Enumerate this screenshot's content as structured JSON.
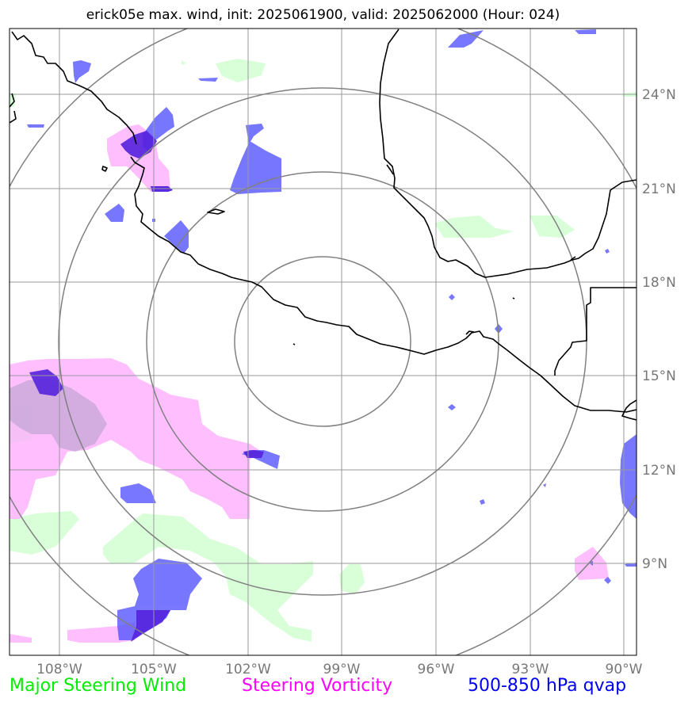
{
  "title": "erick05e max. wind, init: 2025061900, valid: 2025062000 (Hour: 024)",
  "lon_labels": [
    "108°W",
    "105°W",
    "102°W",
    "99°W",
    "96°W",
    "93°W",
    "90°W"
  ],
  "lat_labels": [
    "24°N",
    "21°N",
    "18°N",
    "15°N",
    "12°N",
    "9°N"
  ],
  "legend": {
    "wind": {
      "label": "Major Steering Wind",
      "color": "#00ee00"
    },
    "vorticity": {
      "label": "Steering Vorticity",
      "color": "#ff00ff"
    },
    "qvap": {
      "label": "500-850 hPa qvap",
      "color": "#0000ee"
    }
  },
  "colors": {
    "wind_fill": "#ccffcc",
    "vorticity_fill": "#ffaaff",
    "qvap_fill": "#5555ff",
    "overlap_fill": "#5522dd",
    "coast": "#000000",
    "grid": "#999999",
    "ring": "#808080"
  }
}
